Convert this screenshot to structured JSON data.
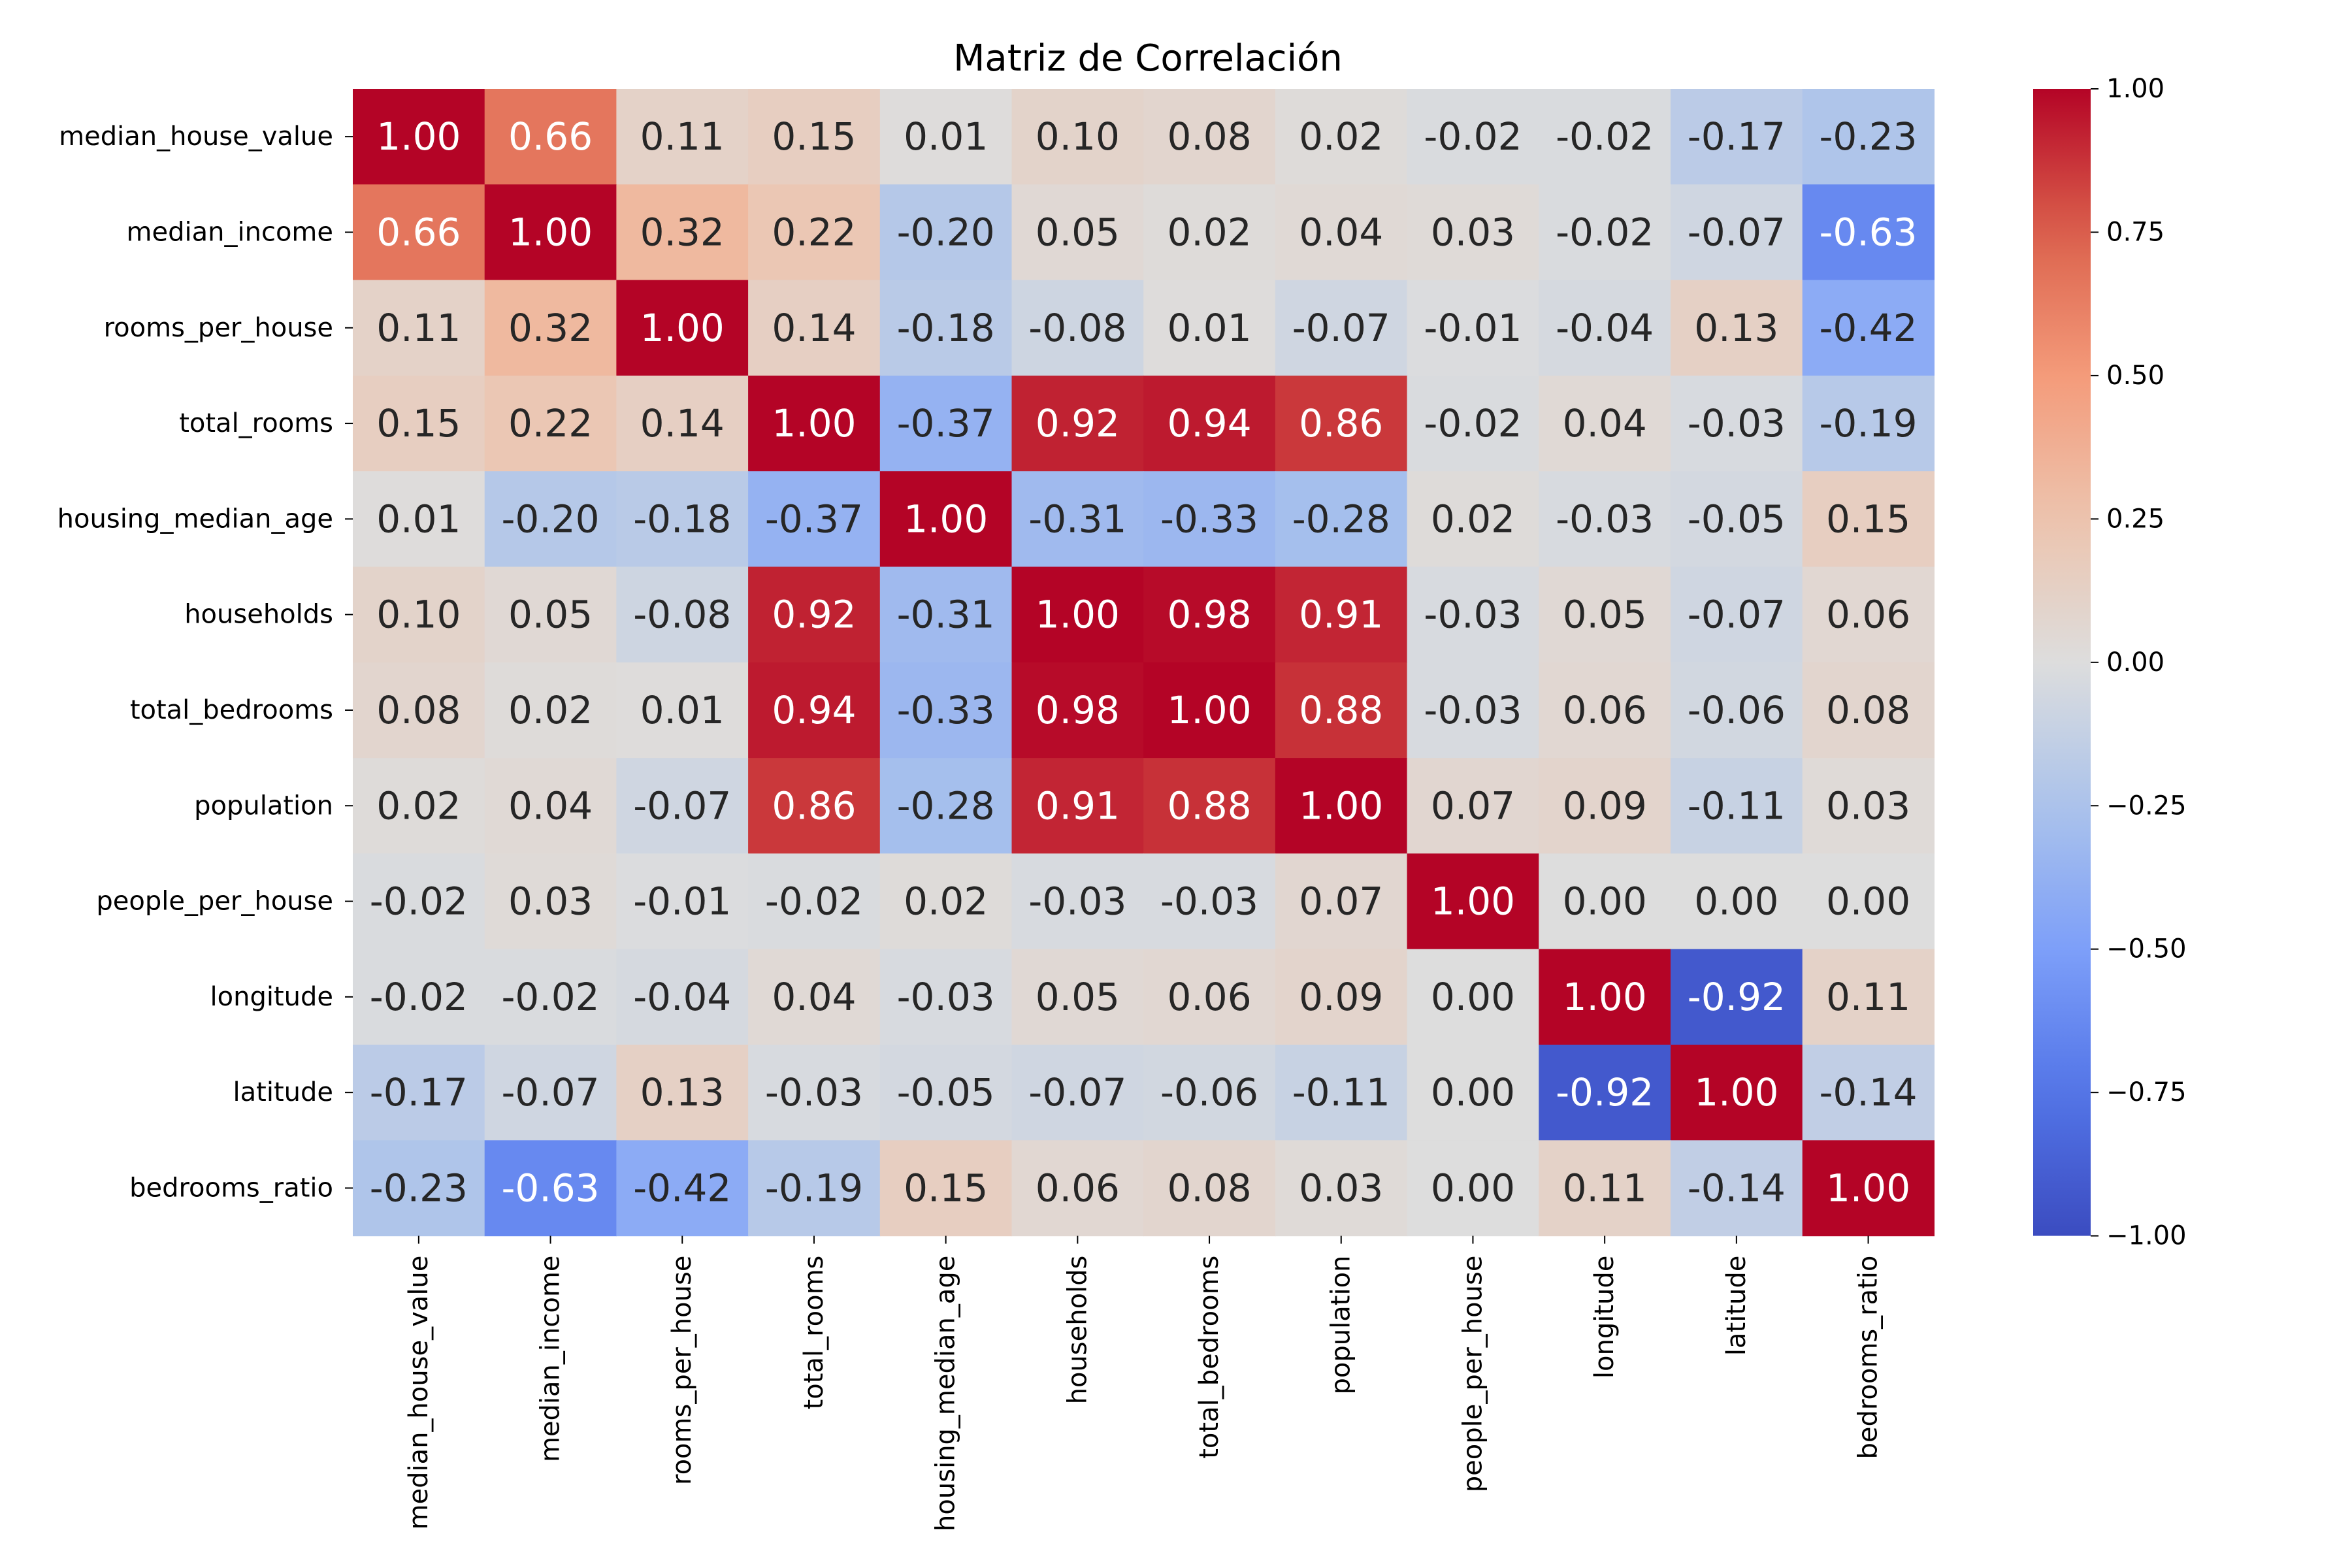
{
  "chart_data": {
    "type": "heatmap",
    "title": "Matriz de Correlación",
    "colormap": "coolwarm",
    "vmin": -1,
    "vmax": 1,
    "value_format": "0.00",
    "rows": [
      "median_house_value",
      "median_income",
      "rooms_per_house",
      "total_rooms",
      "housing_median_age",
      "households",
      "total_bedrooms",
      "population",
      "people_per_house",
      "longitude",
      "latitude",
      "bedrooms_ratio"
    ],
    "columns": [
      "median_house_value",
      "median_income",
      "rooms_per_house",
      "total_rooms",
      "housing_median_age",
      "households",
      "total_bedrooms",
      "population",
      "people_per_house",
      "longitude",
      "latitude",
      "bedrooms_ratio"
    ],
    "values": [
      [
        1.0,
        0.66,
        0.11,
        0.15,
        0.01,
        0.1,
        0.08,
        0.02,
        -0.02,
        -0.02,
        -0.17,
        -0.23
      ],
      [
        0.66,
        1.0,
        0.32,
        0.22,
        -0.2,
        0.05,
        0.02,
        0.04,
        0.03,
        -0.02,
        -0.07,
        -0.63
      ],
      [
        0.11,
        0.32,
        1.0,
        0.14,
        -0.18,
        -0.08,
        0.01,
        -0.07,
        -0.01,
        -0.04,
        0.13,
        -0.42
      ],
      [
        0.15,
        0.22,
        0.14,
        1.0,
        -0.37,
        0.92,
        0.94,
        0.86,
        -0.02,
        0.04,
        -0.03,
        -0.19
      ],
      [
        0.01,
        -0.2,
        -0.18,
        -0.37,
        1.0,
        -0.31,
        -0.33,
        -0.28,
        0.02,
        -0.03,
        -0.05,
        0.15
      ],
      [
        0.1,
        0.05,
        -0.08,
        0.92,
        -0.31,
        1.0,
        0.98,
        0.91,
        -0.03,
        0.05,
        -0.07,
        0.06
      ],
      [
        0.08,
        0.02,
        0.01,
        0.94,
        -0.33,
        0.98,
        1.0,
        0.88,
        -0.03,
        0.06,
        -0.06,
        0.08
      ],
      [
        0.02,
        0.04,
        -0.07,
        0.86,
        -0.28,
        0.91,
        0.88,
        1.0,
        0.07,
        0.09,
        -0.11,
        0.03
      ],
      [
        -0.02,
        0.03,
        -0.01,
        -0.02,
        0.02,
        -0.03,
        -0.03,
        0.07,
        1.0,
        0.0,
        0.0,
        0.0
      ],
      [
        -0.02,
        -0.02,
        -0.04,
        0.04,
        -0.03,
        0.05,
        0.06,
        0.09,
        0.0,
        1.0,
        -0.92,
        0.11
      ],
      [
        -0.17,
        -0.07,
        0.13,
        -0.03,
        -0.05,
        -0.07,
        -0.06,
        -0.11,
        0.0,
        -0.92,
        1.0,
        -0.14
      ],
      [
        -0.23,
        -0.63,
        -0.42,
        -0.19,
        0.15,
        0.06,
        0.08,
        0.03,
        0.0,
        0.11,
        -0.14,
        1.0
      ]
    ],
    "colorbar_ticks": [
      "1.00",
      "0.75",
      "0.50",
      "0.25",
      "0.00",
      "−0.25",
      "−0.50",
      "−0.75",
      "−1.00"
    ],
    "colorbar_tick_values": [
      1.0,
      0.75,
      0.5,
      0.25,
      0.0,
      -0.25,
      -0.5,
      -0.75,
      -1.0
    ]
  }
}
